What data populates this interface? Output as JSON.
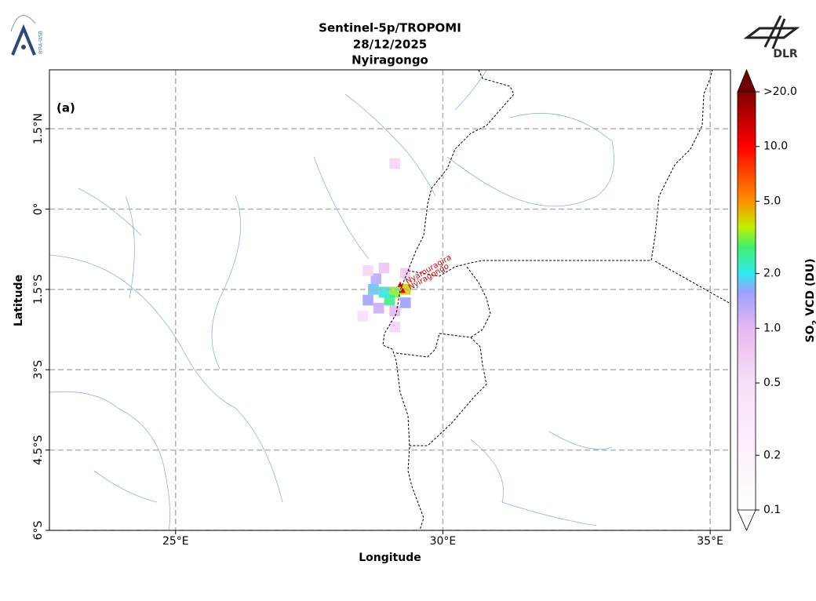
{
  "header": {
    "title": "Sentinel-5p/TROPOMI",
    "date": "28/12/2025",
    "location": "Nyiragongo"
  },
  "logos": {
    "left": "BIRA-IASB",
    "right": "DLR"
  },
  "map": {
    "panel_label": "(a)",
    "x_label": "Longitude",
    "y_label": "Latitude",
    "xlim": [
      22.64,
      35.38
    ],
    "ylim": [
      -6,
      2.6
    ],
    "xticks": [
      {
        "value": 25,
        "label": "25°E"
      },
      {
        "value": 30,
        "label": "30°E"
      },
      {
        "value": 35,
        "label": "35°E"
      }
    ],
    "yticks": [
      {
        "value": 1.5,
        "label": "1.5°N"
      },
      {
        "value": 0,
        "label": "0°"
      },
      {
        "value": -1.5,
        "label": "1.5°S"
      },
      {
        "value": -3,
        "label": "3°S"
      },
      {
        "value": -4.5,
        "label": "4.5°S"
      },
      {
        "value": -6,
        "label": "6°S"
      }
    ],
    "grid": true,
    "volcanoes": [
      {
        "name": "Nyamuragira",
        "lon": 29.2,
        "lat": -1.41
      },
      {
        "name": "Nyiragongo",
        "lon": 29.25,
        "lat": -1.52
      }
    ],
    "so2_cells": [
      {
        "lon": 29.1,
        "lat": -1.55,
        "value": 3.2
      },
      {
        "lon": 29.3,
        "lat": -1.5,
        "value": 4
      },
      {
        "lon": 29.0,
        "lat": -1.7,
        "value": 2.6
      },
      {
        "lon": 28.9,
        "lat": -1.55,
        "value": 2.1
      },
      {
        "lon": 28.7,
        "lat": -1.5,
        "value": 1.8
      },
      {
        "lon": 28.75,
        "lat": -1.3,
        "value": 1.3
      },
      {
        "lon": 28.6,
        "lat": -1.7,
        "value": 1.5
      },
      {
        "lon": 28.8,
        "lat": -1.85,
        "value": 1.2
      },
      {
        "lon": 29.1,
        "lat": -1.9,
        "value": 1.0
      },
      {
        "lon": 29.1,
        "lat": -2.2,
        "value": 0.6
      },
      {
        "lon": 28.6,
        "lat": -1.15,
        "value": 0.6
      },
      {
        "lon": 29.3,
        "lat": -1.2,
        "value": 0.7
      },
      {
        "lon": 29.1,
        "lat": 0.85,
        "value": 0.6
      },
      {
        "lon": 28.5,
        "lat": -2.0,
        "value": 0.5
      },
      {
        "lon": 29.3,
        "lat": -1.75,
        "value": 1.6
      },
      {
        "lon": 28.9,
        "lat": -1.1,
        "value": 0.8
      }
    ]
  },
  "colorbar": {
    "label_main": "SO",
    "label_sub": "2",
    "label_rest": " VCD (DU)",
    "lim": [
      0.1,
      20
    ],
    "log": true,
    "ticks": [
      {
        "value": 20,
        "label": ">20.0"
      },
      {
        "value": 10,
        "label": "10.0"
      },
      {
        "value": 5,
        "label": "5.0"
      },
      {
        "value": 2,
        "label": "2.0"
      },
      {
        "value": 1,
        "label": "1.0"
      },
      {
        "value": 0.5,
        "label": "0.5"
      },
      {
        "value": 0.2,
        "label": "0.2"
      },
      {
        "value": 0.1,
        "label": "0.1"
      }
    ],
    "colormap": [
      [
        0.1,
        "#ffffff"
      ],
      [
        0.5,
        "#f8e0f8"
      ],
      [
        1,
        "#e8b8f0"
      ],
      [
        1.6,
        "#9aa0ff"
      ],
      [
        2,
        "#30e8f0"
      ],
      [
        2.8,
        "#40f070"
      ],
      [
        3.6,
        "#c0f000"
      ],
      [
        5,
        "#ff9000"
      ],
      [
        10,
        "#ff0000"
      ],
      [
        20,
        "#800000"
      ]
    ],
    "over_color": "#700000"
  }
}
